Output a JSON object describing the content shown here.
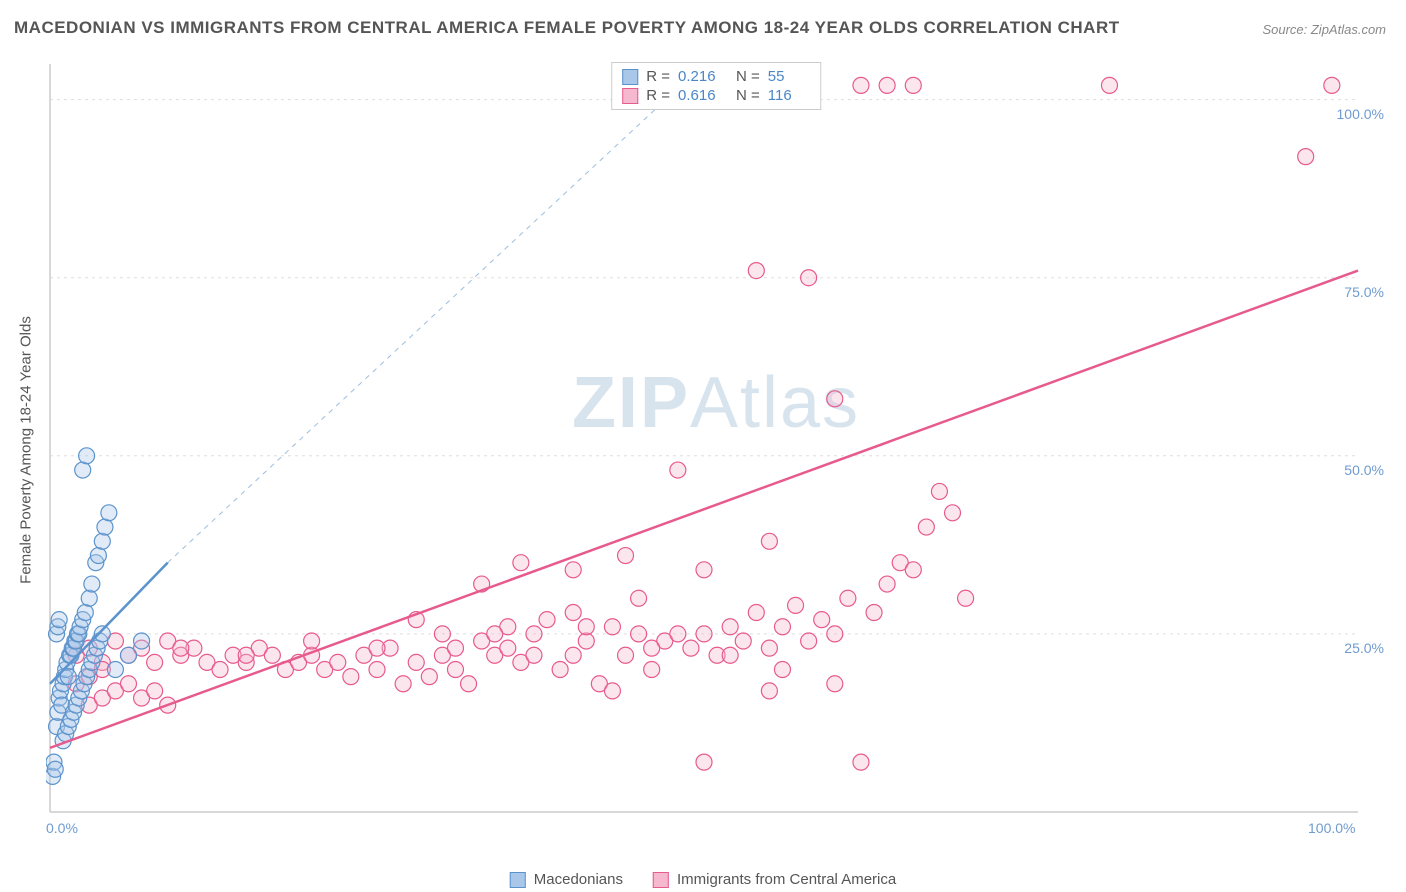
{
  "title": "MACEDONIAN VS IMMIGRANTS FROM CENTRAL AMERICA FEMALE POVERTY AMONG 18-24 YEAR OLDS CORRELATION CHART",
  "source": "Source: ZipAtlas.com",
  "y_axis_label": "Female Poverty Among 18-24 Year Olds",
  "watermark_bold": "ZIP",
  "watermark_light": "Atlas",
  "chart": {
    "type": "scatter",
    "xlim": [
      0,
      100
    ],
    "ylim": [
      0,
      105
    ],
    "x_ticks": [
      {
        "v": 0,
        "l": "0.0%"
      },
      {
        "v": 100,
        "l": "100.0%"
      }
    ],
    "y_ticks": [
      {
        "v": 25,
        "l": "25.0%"
      },
      {
        "v": 50,
        "l": "50.0%"
      },
      {
        "v": 75,
        "l": "75.0%"
      },
      {
        "v": 100,
        "l": "100.0%"
      }
    ],
    "grid_color": "#dddddd",
    "grid_dash": "3,4",
    "axis_line_color": "#cccccc",
    "background": "#ffffff",
    "marker_radius": 8,
    "marker_stroke_width": 1.2,
    "marker_fill_opacity": 0.35,
    "series": [
      {
        "name": "Macedonians",
        "color_stroke": "#5b93cc",
        "color_fill": "#a9c7e8",
        "r_value": "0.216",
        "n_value": "55",
        "trend_solid": {
          "x1": 0,
          "y1": 18,
          "x2": 9,
          "y2": 35
        },
        "trend_dash": {
          "x1": 9,
          "y1": 35,
          "x2": 50,
          "y2": 105
        },
        "points": [
          [
            0.2,
            5
          ],
          [
            0.3,
            7
          ],
          [
            0.4,
            6
          ],
          [
            0.5,
            12
          ],
          [
            0.6,
            14
          ],
          [
            0.7,
            16
          ],
          [
            0.8,
            17
          ],
          [
            0.9,
            15
          ],
          [
            1.0,
            18
          ],
          [
            1.1,
            19
          ],
          [
            1.2,
            20
          ],
          [
            1.3,
            21
          ],
          [
            1.4,
            19
          ],
          [
            1.5,
            22
          ],
          [
            1.6,
            22
          ],
          [
            1.7,
            23
          ],
          [
            1.8,
            23
          ],
          [
            1.9,
            24
          ],
          [
            2.0,
            24
          ],
          [
            2.1,
            25
          ],
          [
            2.2,
            25
          ],
          [
            2.3,
            26
          ],
          [
            2.5,
            27
          ],
          [
            2.7,
            28
          ],
          [
            3.0,
            30
          ],
          [
            3.2,
            32
          ],
          [
            3.5,
            35
          ],
          [
            3.7,
            36
          ],
          [
            4.0,
            38
          ],
          [
            4.2,
            40
          ],
          [
            4.5,
            42
          ],
          [
            1.0,
            10
          ],
          [
            1.2,
            11
          ],
          [
            1.4,
            12
          ],
          [
            1.6,
            13
          ],
          [
            1.8,
            14
          ],
          [
            2.0,
            15
          ],
          [
            2.2,
            16
          ],
          [
            2.4,
            17
          ],
          [
            2.6,
            18
          ],
          [
            2.8,
            19
          ],
          [
            3.0,
            20
          ],
          [
            3.2,
            21
          ],
          [
            3.4,
            22
          ],
          [
            3.6,
            23
          ],
          [
            3.8,
            24
          ],
          [
            4.0,
            25
          ],
          [
            2.5,
            48
          ],
          [
            2.8,
            50
          ],
          [
            0.5,
            25
          ],
          [
            0.6,
            26
          ],
          [
            0.7,
            27
          ],
          [
            5,
            20
          ],
          [
            6,
            22
          ],
          [
            7,
            24
          ]
        ]
      },
      {
        "name": "Immigrants from Central America",
        "color_stroke": "#e75a8d",
        "color_fill": "#f5b8ce",
        "r_value": "0.616",
        "n_value": "116",
        "trend_solid": {
          "x1": 0,
          "y1": 9,
          "x2": 100,
          "y2": 76
        },
        "trend_dash": null,
        "points": [
          [
            2,
            22
          ],
          [
            3,
            23
          ],
          [
            4,
            21
          ],
          [
            5,
            24
          ],
          [
            6,
            22
          ],
          [
            7,
            23
          ],
          [
            8,
            21
          ],
          [
            9,
            24
          ],
          [
            10,
            22
          ],
          [
            11,
            23
          ],
          [
            12,
            21
          ],
          [
            13,
            20
          ],
          [
            14,
            22
          ],
          [
            15,
            21
          ],
          [
            16,
            23
          ],
          [
            17,
            22
          ],
          [
            18,
            20
          ],
          [
            19,
            21
          ],
          [
            20,
            22
          ],
          [
            21,
            20
          ],
          [
            22,
            21
          ],
          [
            23,
            19
          ],
          [
            24,
            22
          ],
          [
            25,
            20
          ],
          [
            26,
            23
          ],
          [
            27,
            18
          ],
          [
            28,
            21
          ],
          [
            29,
            19
          ],
          [
            30,
            22
          ],
          [
            31,
            20
          ],
          [
            32,
            18
          ],
          [
            33,
            24
          ],
          [
            34,
            22
          ],
          [
            35,
            23
          ],
          [
            36,
            21
          ],
          [
            37,
            25
          ],
          [
            38,
            27
          ],
          [
            39,
            20
          ],
          [
            40,
            22
          ],
          [
            41,
            24
          ],
          [
            42,
            18
          ],
          [
            43,
            26
          ],
          [
            44,
            22
          ],
          [
            45,
            25
          ],
          [
            46,
            20
          ],
          [
            47,
            24
          ],
          [
            48,
            48
          ],
          [
            49,
            23
          ],
          [
            50,
            25
          ],
          [
            50,
            7
          ],
          [
            51,
            22
          ],
          [
            52,
            26
          ],
          [
            53,
            24
          ],
          [
            54,
            28
          ],
          [
            55,
            23
          ],
          [
            56,
            26
          ],
          [
            57,
            29
          ],
          [
            58,
            24
          ],
          [
            59,
            27
          ],
          [
            60,
            25
          ],
          [
            61,
            30
          ],
          [
            62,
            7
          ],
          [
            63,
            28
          ],
          [
            64,
            32
          ],
          [
            65,
            35
          ],
          [
            66,
            34
          ],
          [
            67,
            40
          ],
          [
            68,
            45
          ],
          [
            69,
            42
          ],
          [
            70,
            30
          ],
          [
            55,
            38
          ],
          [
            50,
            34
          ],
          [
            45,
            30
          ],
          [
            40,
            28
          ],
          [
            35,
            26
          ],
          [
            30,
            25
          ],
          [
            25,
            23
          ],
          [
            20,
            24
          ],
          [
            15,
            22
          ],
          [
            10,
            23
          ],
          [
            54,
            76
          ],
          [
            58,
            75
          ],
          [
            58,
            102
          ],
          [
            60,
            58
          ],
          [
            62,
            102
          ],
          [
            64,
            102
          ],
          [
            66,
            102
          ],
          [
            81,
            102
          ],
          [
            98,
            102
          ],
          [
            96,
            92
          ],
          [
            3,
            15
          ],
          [
            4,
            16
          ],
          [
            5,
            17
          ],
          [
            6,
            18
          ],
          [
            7,
            16
          ],
          [
            8,
            17
          ],
          [
            9,
            15
          ],
          [
            2,
            18
          ],
          [
            3,
            19
          ],
          [
            4,
            20
          ],
          [
            55,
            17
          ],
          [
            60,
            18
          ],
          [
            33,
            32
          ],
          [
            36,
            35
          ],
          [
            40,
            34
          ],
          [
            44,
            36
          ],
          [
            48,
            25
          ],
          [
            52,
            22
          ],
          [
            56,
            20
          ],
          [
            43,
            17
          ],
          [
            28,
            27
          ],
          [
            31,
            23
          ],
          [
            34,
            25
          ],
          [
            37,
            22
          ],
          [
            41,
            26
          ],
          [
            46,
            23
          ]
        ]
      }
    ]
  },
  "stats_labels": {
    "r": "R =",
    "n": "N ="
  },
  "legend_items": [
    {
      "swatch": "blue",
      "label": "Macedonians"
    },
    {
      "swatch": "pink",
      "label": "Immigrants from Central America"
    }
  ]
}
